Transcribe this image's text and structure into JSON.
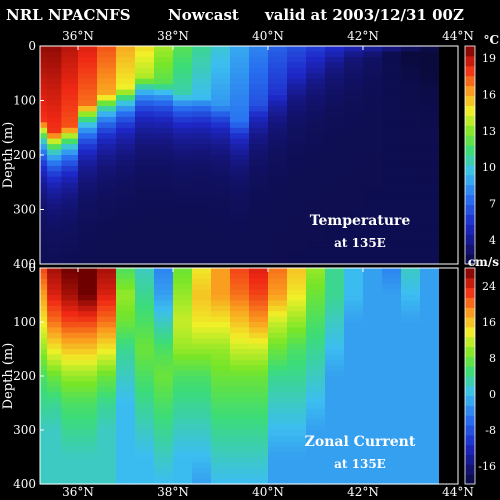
{
  "header": {
    "model": "NRL NPACNFS",
    "product": "Nowcast",
    "valid": "valid at 2003/12/31 00Z"
  },
  "chart_data": [
    {
      "type": "heatmap",
      "title": "Temperature",
      "subtitle": "at 135E",
      "ylabel": "Depth (m)",
      "x_ticks": [
        "36°N",
        "38°N",
        "40°N",
        "42°N",
        "44°N"
      ],
      "x_tick_values": [
        36,
        38,
        40,
        42,
        44
      ],
      "xlim": [
        35.2,
        44.0
      ],
      "y_ticks": [
        0,
        100,
        200,
        300,
        400
      ],
      "ylim": [
        0,
        400
      ],
      "y_inverted": true,
      "colorbar": {
        "unit": "°C",
        "ticks": [
          19,
          16,
          13,
          10,
          7,
          4
        ],
        "range": [
          2,
          20
        ]
      },
      "x": [
        35.2,
        35.5,
        35.8,
        36.2,
        36.6,
        37.0,
        37.4,
        37.8,
        38.2,
        38.6,
        39.0,
        39.4,
        39.8,
        40.2,
        40.6,
        41.0,
        41.4,
        41.8,
        42.2,
        42.6,
        43.0,
        43.4
      ],
      "surface_temp": [
        19.5,
        19.5,
        19.0,
        18.5,
        17.5,
        16.0,
        15.0,
        13.5,
        12.0,
        11.0,
        10.0,
        9.0,
        8.0,
        7.0,
        6.5,
        6.0,
        5.5,
        5.0,
        4.5,
        4.0,
        3.5,
        3.0
      ],
      "thermocline_depth_m": [
        140,
        160,
        150,
        110,
        90,
        80,
        60,
        70,
        90,
        95,
        110,
        140,
        110,
        90,
        60,
        45,
        30,
        20,
        20,
        15,
        10,
        10
      ],
      "deep_temp": 2.5
    },
    {
      "type": "heatmap",
      "title": "Zonal Current",
      "subtitle": "at 135E",
      "ylabel": "Depth (m)",
      "x_ticks": [
        "36°N",
        "38°N",
        "40°N",
        "42°N",
        "44°N"
      ],
      "x_tick_values": [
        36,
        38,
        40,
        42,
        44
      ],
      "xlim": [
        35.2,
        44.0
      ],
      "y_ticks": [
        0,
        100,
        200,
        300,
        400
      ],
      "ylim": [
        0,
        400
      ],
      "y_inverted": true,
      "colorbar": {
        "unit": "cm/s",
        "ticks": [
          24,
          16,
          8,
          0,
          -8,
          -16
        ],
        "range": [
          -20,
          28
        ]
      },
      "x": [
        35.2,
        35.5,
        35.8,
        36.2,
        36.6,
        37.0,
        37.4,
        37.8,
        38.2,
        38.6,
        39.0,
        39.4,
        39.8,
        40.2,
        40.6,
        41.0,
        41.4,
        41.8,
        42.2,
        42.6,
        43.0,
        43.4
      ],
      "depth_m": [
        0,
        50,
        100,
        150,
        200,
        250,
        300,
        350,
        400
      ],
      "values_cm_s": [
        [
          22,
          18,
          14,
          10,
          6,
          4,
          2,
          2,
          2
        ],
        [
          26,
          24,
          20,
          14,
          8,
          4,
          2,
          2,
          2
        ],
        [
          28,
          26,
          22,
          16,
          10,
          6,
          4,
          2,
          2
        ],
        [
          30,
          28,
          22,
          16,
          10,
          6,
          4,
          2,
          2
        ],
        [
          26,
          24,
          20,
          14,
          8,
          4,
          2,
          2,
          2
        ],
        [
          6,
          10,
          8,
          4,
          2,
          0,
          0,
          0,
          0
        ],
        [
          2,
          4,
          6,
          8,
          6,
          4,
          2,
          0,
          0
        ],
        [
          -4,
          -2,
          2,
          6,
          8,
          6,
          4,
          2,
          0
        ],
        [
          8,
          10,
          12,
          10,
          6,
          4,
          2,
          0,
          0
        ],
        [
          14,
          16,
          14,
          10,
          6,
          4,
          2,
          0,
          -2
        ],
        [
          18,
          18,
          14,
          10,
          8,
          6,
          4,
          2,
          0
        ],
        [
          22,
          20,
          16,
          12,
          8,
          6,
          4,
          2,
          0
        ],
        [
          24,
          22,
          18,
          12,
          8,
          6,
          4,
          2,
          0
        ],
        [
          20,
          18,
          12,
          8,
          4,
          2,
          0,
          -2,
          -2
        ],
        [
          16,
          14,
          10,
          6,
          4,
          2,
          0,
          -2,
          -2
        ],
        [
          10,
          8,
          6,
          4,
          2,
          0,
          -2,
          -2,
          -2
        ],
        [
          4,
          4,
          2,
          0,
          -2,
          -2,
          -2,
          -2,
          -2
        ],
        [
          0,
          0,
          -2,
          -2,
          -2,
          -2,
          -2,
          -2,
          -2
        ],
        [
          -2,
          -2,
          -2,
          -2,
          -2,
          -2,
          -2,
          -2,
          -2
        ],
        [
          -4,
          -2,
          -2,
          -2,
          -2,
          -2,
          -2,
          -2,
          -2
        ],
        [
          2,
          0,
          -2,
          -2,
          -2,
          -2,
          -2,
          -2,
          -2
        ],
        [
          -2,
          -2,
          -2,
          -2,
          -2,
          -2,
          -2,
          -2,
          -2
        ]
      ]
    }
  ]
}
